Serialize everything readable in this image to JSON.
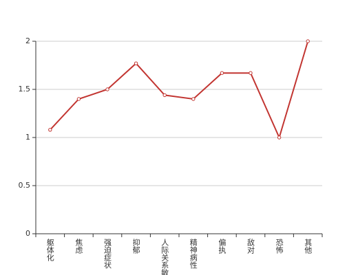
{
  "chart_data": {
    "type": "line",
    "categories": [
      "躯体化",
      "焦虑",
      "强迫症状",
      "抑郁",
      "人际关系敏感",
      "精神病性",
      "偏执",
      "敌对",
      "恐怖",
      "其他"
    ],
    "values": [
      1.08,
      1.4,
      1.5,
      1.77,
      1.44,
      1.4,
      1.67,
      1.67,
      1.0,
      2.0
    ],
    "color": "#c23531",
    "ylim": [
      0,
      2
    ],
    "yticks": [
      0,
      0.5,
      1,
      1.5,
      2
    ],
    "grid": true
  }
}
